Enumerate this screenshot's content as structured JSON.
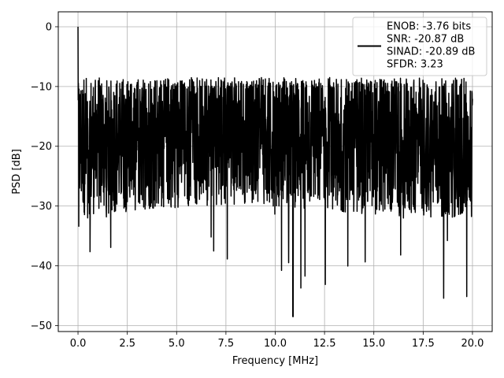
{
  "chart_data": {
    "type": "line",
    "title": "",
    "xlabel": "Frequency [MHz]",
    "ylabel": "PSD [dB]",
    "xlim": [
      -1.0,
      21.0
    ],
    "ylim": [
      -51.0,
      2.5
    ],
    "xticks": [
      0.0,
      2.5,
      5.0,
      7.5,
      10.0,
      12.5,
      15.0,
      17.5,
      20.0
    ],
    "xtick_labels": [
      "0.0",
      "2.5",
      "5.0",
      "7.5",
      "10.0",
      "12.5",
      "15.0",
      "17.5",
      "20.0"
    ],
    "yticks": [
      0,
      -10,
      -20,
      -30,
      -40,
      -50
    ],
    "ytick_labels": [
      "0",
      "−10",
      "−20",
      "−30",
      "−40",
      "−50"
    ],
    "grid": true,
    "legend_position": "top-right",
    "series": [
      {
        "color": "#000000",
        "legend_lines": [
          "ENOB: -3.76 bits",
          "SNR: -20.87 dB",
          "SINAD: -20.89 dB",
          "SFDR: 3.23"
        ],
        "x_range": [
          0.0,
          20.0
        ],
        "noise_floor_db": -20,
        "peak_db": 0.0,
        "peak_freq": 0.0,
        "min_db": -48.5,
        "min_freq": 10.9
      }
    ]
  }
}
